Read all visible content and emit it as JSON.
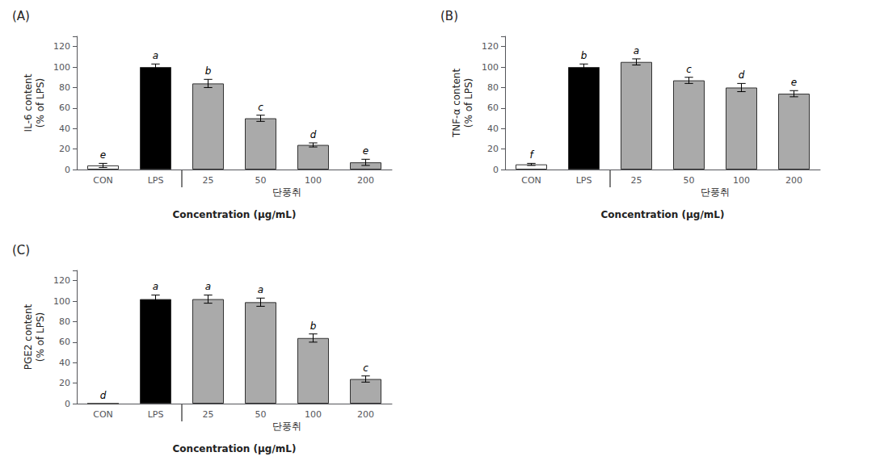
{
  "chart_data": [
    {
      "type": "bar",
      "title": "(A)",
      "ylabel": "IL-6 content\n(% of LPS)",
      "xlabel": "Concentration (μg/mL)",
      "categories": [
        "CON",
        "LPS",
        "25",
        "50",
        "100",
        "200"
      ],
      "values": [
        4,
        100,
        84,
        50,
        24,
        7
      ],
      "errors": [
        2,
        3,
        4,
        3,
        2,
        3
      ],
      "colors": [
        "#ffffff",
        "#000000",
        "#aaaaaa",
        "#aaaaaa",
        "#aaaaaa",
        "#aaaaaa"
      ],
      "annotations": [
        {
          "text": "e",
          "category": "CON"
        },
        {
          "text": "a",
          "category": "LPS"
        },
        {
          "text": "b",
          "category": "25"
        },
        {
          "text": "c",
          "category": "50"
        },
        {
          "text": "d",
          "category": "100"
        },
        {
          "text": "e",
          "category": "200"
        },
        {
          "text": "단풍취",
          "categories": [
            "25",
            "50",
            "100",
            "200"
          ]
        }
      ],
      "ylim": [
        0,
        130
      ],
      "yticks": [
        0,
        20,
        40,
        60,
        80,
        100,
        120
      ],
      "grid": false
    },
    {
      "type": "bar",
      "title": "(B)",
      "ylabel": "TNF-α content\n(% of LPS)",
      "xlabel": "Concentration (μg/mL)",
      "categories": [
        "CON",
        "LPS",
        "25",
        "50",
        "100",
        "200"
      ],
      "values": [
        5,
        100,
        105,
        87,
        80,
        74
      ],
      "errors": [
        1,
        3,
        3,
        3,
        4,
        3
      ],
      "colors": [
        "#ffffff",
        "#000000",
        "#aaaaaa",
        "#aaaaaa",
        "#aaaaaa",
        "#aaaaaa"
      ],
      "annotations": [
        {
          "text": "f",
          "category": "CON"
        },
        {
          "text": "b",
          "category": "LPS"
        },
        {
          "text": "a",
          "category": "25"
        },
        {
          "text": "c",
          "category": "50"
        },
        {
          "text": "d",
          "category": "100"
        },
        {
          "text": "e",
          "category": "200"
        },
        {
          "text": "단풍취",
          "categories": [
            "25",
            "50",
            "100",
            "200"
          ]
        }
      ],
      "ylim": [
        0,
        130
      ],
      "yticks": [
        0,
        20,
        40,
        60,
        80,
        100,
        120
      ],
      "grid": false
    },
    {
      "type": "bar",
      "title": "(C)",
      "ylabel": "PGE2 content\n(% of LPS)",
      "xlabel": "Concentration (μg/mL)",
      "categories": [
        "CON",
        "LPS",
        "25",
        "50",
        "100",
        "200"
      ],
      "values": [
        0,
        102,
        102,
        99,
        64,
        24
      ],
      "errors": [
        0,
        4,
        4,
        4,
        4,
        3
      ],
      "colors": [
        "#ffffff",
        "#000000",
        "#aaaaaa",
        "#aaaaaa",
        "#aaaaaa",
        "#aaaaaa"
      ],
      "annotations": [
        {
          "text": "d",
          "category": "CON"
        },
        {
          "text": "a",
          "category": "LPS"
        },
        {
          "text": "a",
          "category": "25"
        },
        {
          "text": "a",
          "category": "50"
        },
        {
          "text": "b",
          "category": "100"
        },
        {
          "text": "c",
          "category": "200"
        },
        {
          "text": "단풍취",
          "categories": [
            "25",
            "50",
            "100",
            "200"
          ]
        }
      ],
      "ylim": [
        0,
        130
      ],
      "yticks": [
        0,
        20,
        40,
        60,
        80,
        100,
        120
      ],
      "grid": false
    }
  ]
}
